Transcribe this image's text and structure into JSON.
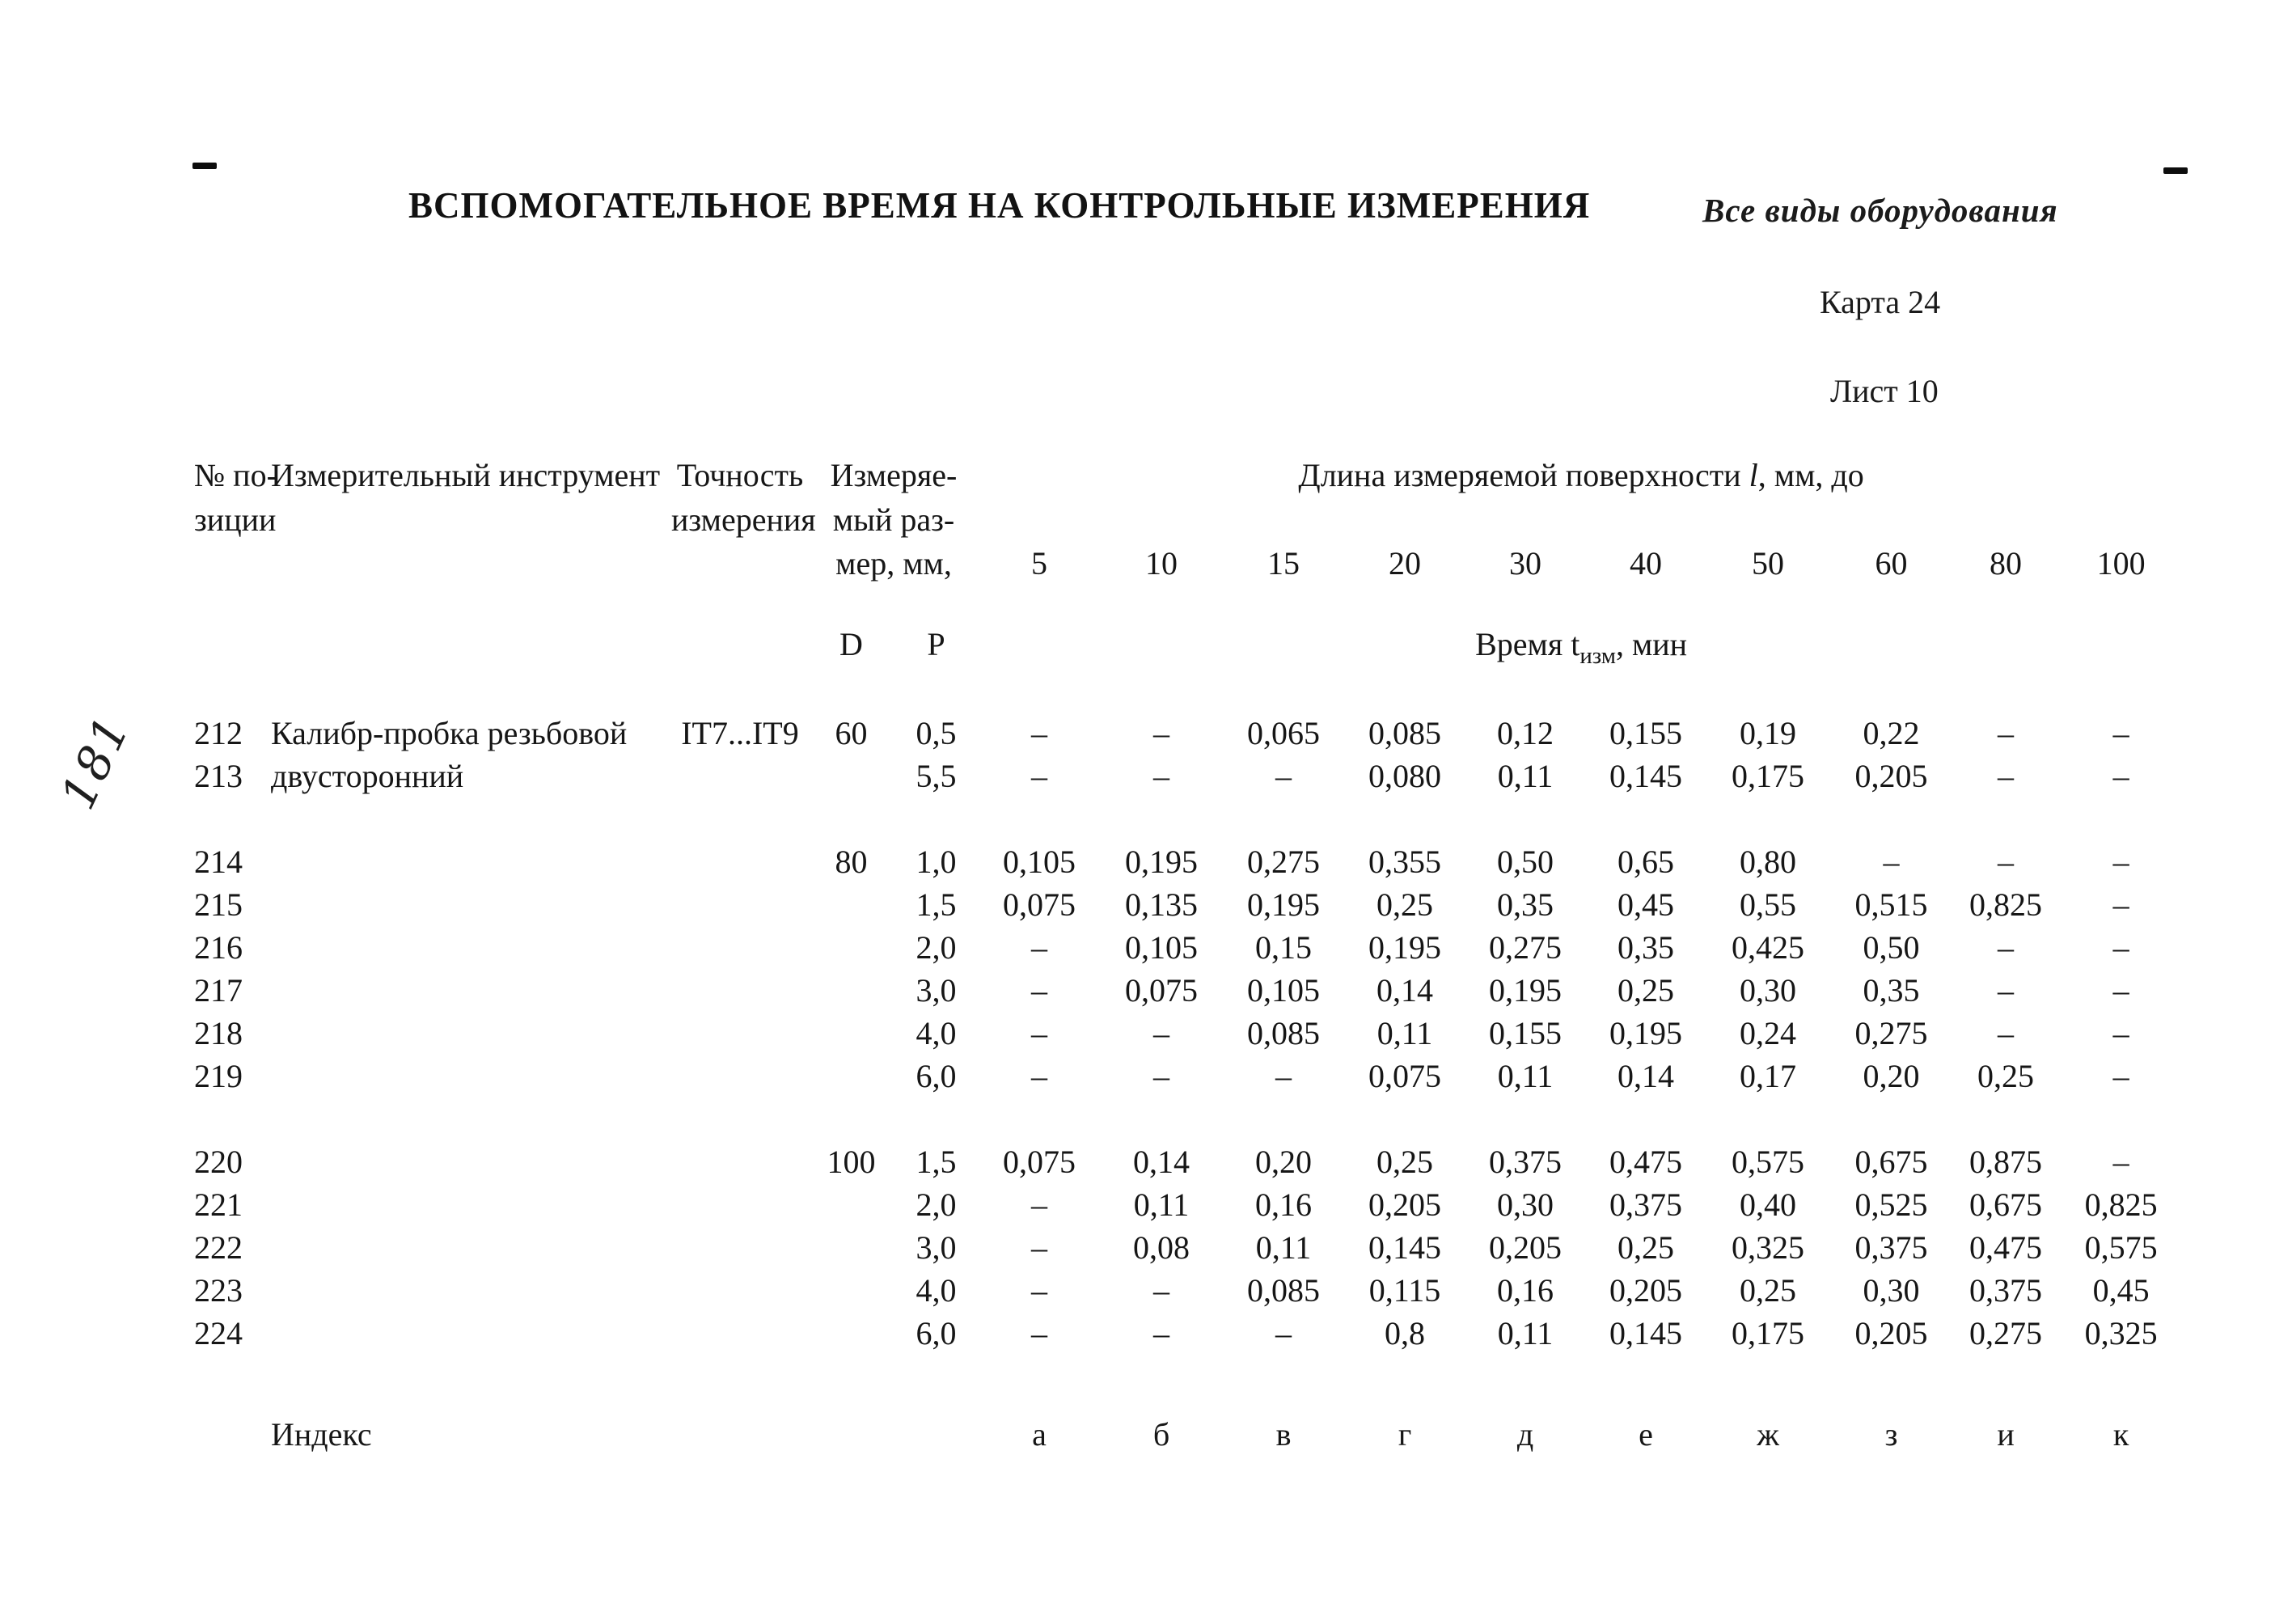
{
  "page": {
    "title": "ВСПОМОГАТЕЛЬНОЕ ВРЕМЯ НА КОНТРОЛЬНЫЕ ИЗМЕРЕНИЯ",
    "equipment_note": "Все виды оборудования",
    "card_label": "Карта 24",
    "sheet_label": "Лист 10",
    "handwritten_page_number": "181"
  },
  "table": {
    "headers": {
      "position_line1": "№ по-",
      "position_line2": "зиции",
      "instrument": "Измерительный инструмент",
      "accuracy_line1": "Точность",
      "accuracy_line2": "измерения",
      "size_line1": "Измеряе-",
      "size_line2": "мый раз-",
      "size_line3": "мер, мм,",
      "size_d": "D",
      "size_p": "P",
      "length_prefix": "Длина измеряемой поверхности ",
      "length_symbol": "l",
      "length_suffix": ", мм, до",
      "length_columns": [
        "5",
        "10",
        "15",
        "20",
        "30",
        "40",
        "50",
        "60",
        "80",
        "100"
      ],
      "time_prefix": "Время t",
      "time_subscript": "изм",
      "time_suffix": ", мин"
    },
    "rows": [
      {
        "pos": "212",
        "instrument": "Калибр-пробка резьбовой",
        "accuracy": "IT7...IT9",
        "d": "60",
        "p": "0,5",
        "values": [
          "–",
          "–",
          "0,065",
          "0,085",
          "0,12",
          "0,155",
          "0,19",
          "0,22",
          "–",
          "–"
        ]
      },
      {
        "pos": "213",
        "instrument": "двусторонний",
        "accuracy": "",
        "d": "",
        "p": "5,5",
        "values": [
          "–",
          "–",
          "–",
          "0,080",
          "0,11",
          "0,145",
          "0,175",
          "0,205",
          "–",
          "–"
        ]
      },
      {
        "pos": "214",
        "instrument": "",
        "accuracy": "",
        "d": "80",
        "p": "1,0",
        "values": [
          "0,105",
          "0,195",
          "0,275",
          "0,355",
          "0,50",
          "0,65",
          "0,80",
          "–",
          "–",
          "–"
        ],
        "gap_before": true
      },
      {
        "pos": "215",
        "instrument": "",
        "accuracy": "",
        "d": "",
        "p": "1,5",
        "values": [
          "0,075",
          "0,135",
          "0,195",
          "0,25",
          "0,35",
          "0,45",
          "0,55",
          "0,515",
          "0,825",
          "–"
        ]
      },
      {
        "pos": "216",
        "instrument": "",
        "accuracy": "",
        "d": "",
        "p": "2,0",
        "values": [
          "–",
          "0,105",
          "0,15",
          "0,195",
          "0,275",
          "0,35",
          "0,425",
          "0,50",
          "–",
          "–"
        ]
      },
      {
        "pos": "217",
        "instrument": "",
        "accuracy": "",
        "d": "",
        "p": "3,0",
        "values": [
          "–",
          "0,075",
          "0,105",
          "0,14",
          "0,195",
          "0,25",
          "0,30",
          "0,35",
          "–",
          "–"
        ]
      },
      {
        "pos": "218",
        "instrument": "",
        "accuracy": "",
        "d": "",
        "p": "4,0",
        "values": [
          "–",
          "–",
          "0,085",
          "0,11",
          "0,155",
          "0,195",
          "0,24",
          "0,275",
          "–",
          "–"
        ]
      },
      {
        "pos": "219",
        "instrument": "",
        "accuracy": "",
        "d": "",
        "p": "6,0",
        "values": [
          "–",
          "–",
          "–",
          "0,075",
          "0,11",
          "0,14",
          "0,17",
          "0,20",
          "0,25",
          "–"
        ]
      },
      {
        "pos": "220",
        "instrument": "",
        "accuracy": "",
        "d": "100",
        "p": "1,5",
        "values": [
          "0,075",
          "0,14",
          "0,20",
          "0,25",
          "0,375",
          "0,475",
          "0,575",
          "0,675",
          "0,875",
          "–"
        ],
        "gap_before": true
      },
      {
        "pos": "221",
        "instrument": "",
        "accuracy": "",
        "d": "",
        "p": "2,0",
        "values": [
          "–",
          "0,11",
          "0,16",
          "0,205",
          "0,30",
          "0,375",
          "0,40",
          "0,525",
          "0,675",
          "0,825"
        ]
      },
      {
        "pos": "222",
        "instrument": "",
        "accuracy": "",
        "d": "",
        "p": "3,0",
        "values": [
          "–",
          "0,08",
          "0,11",
          "0,145",
          "0,205",
          "0,25",
          "0,325",
          "0,375",
          "0,475",
          "0,575"
        ]
      },
      {
        "pos": "223",
        "instrument": "",
        "accuracy": "",
        "d": "",
        "p": "4,0",
        "values": [
          "–",
          "–",
          "0,085",
          "0,115",
          "0,16",
          "0,205",
          "0,25",
          "0,30",
          "0,375",
          "0,45"
        ]
      },
      {
        "pos": "224",
        "instrument": "",
        "accuracy": "",
        "d": "",
        "p": "6,0",
        "values": [
          "–",
          "–",
          "–",
          "0,8",
          "0,11",
          "0,145",
          "0,175",
          "0,205",
          "0,275",
          "0,325"
        ]
      }
    ],
    "index_row": {
      "label": "Индекс",
      "letters": [
        "а",
        "б",
        "в",
        "г",
        "д",
        "е",
        "ж",
        "з",
        "и",
        "к"
      ]
    }
  }
}
